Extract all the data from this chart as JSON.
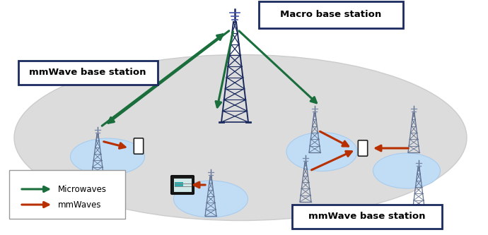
{
  "fig_width": 6.9,
  "fig_height": 3.33,
  "dpi": 100,
  "bg_color": "#ffffff",
  "ellipse_color": "#dcdcdc",
  "ellipse_edge": "#cccccc",
  "small_circle_color": "#c0ddf5",
  "small_circle_edge": "#a8ccee",
  "green_color": "#1a6e3c",
  "orange_color": "#b83000",
  "tower_macro_color": "#1a2a5e",
  "tower_small_color": "#607090",
  "label_macro": "Macro base station",
  "label_mmwave1": "mmWave base station",
  "label_mmwave2": "mmWave base station",
  "legend_micro": "Microwaves",
  "legend_mm": "mmWaves"
}
